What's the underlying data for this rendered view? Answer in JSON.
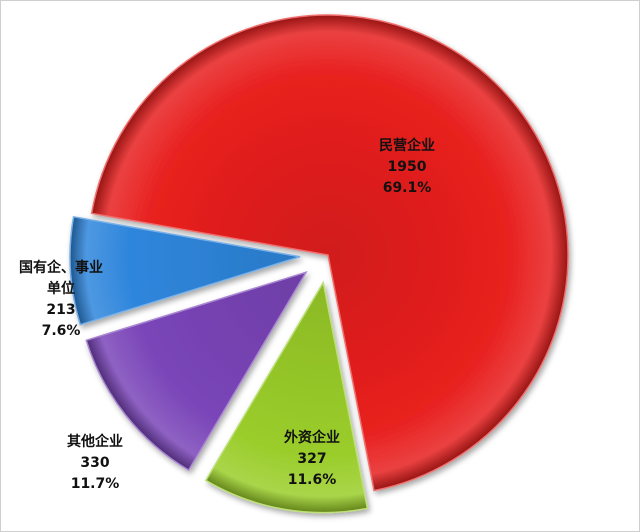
{
  "chart_data": {
    "type": "pie",
    "start_direction": "left, slightly above horizontal; clockwise",
    "exploded": [
      "外资企业",
      "其他企业",
      "国有企、事业单位"
    ],
    "slices": [
      {
        "label": "民营企业",
        "value": 1950,
        "percent": "69.1%",
        "color": "#e8201f"
      },
      {
        "label": "外资企业",
        "value": 327,
        "percent": "11.6%",
        "color": "#9acd2a"
      },
      {
        "label": "其他企业",
        "value": 330,
        "percent": "11.7%",
        "color": "#7a45b8"
      },
      {
        "label_line1": "国有企、事业",
        "label_line2": "单位",
        "label": "国有企、事业单位",
        "value": 213,
        "percent": "7.6%",
        "color": "#2f86dc"
      }
    ]
  }
}
